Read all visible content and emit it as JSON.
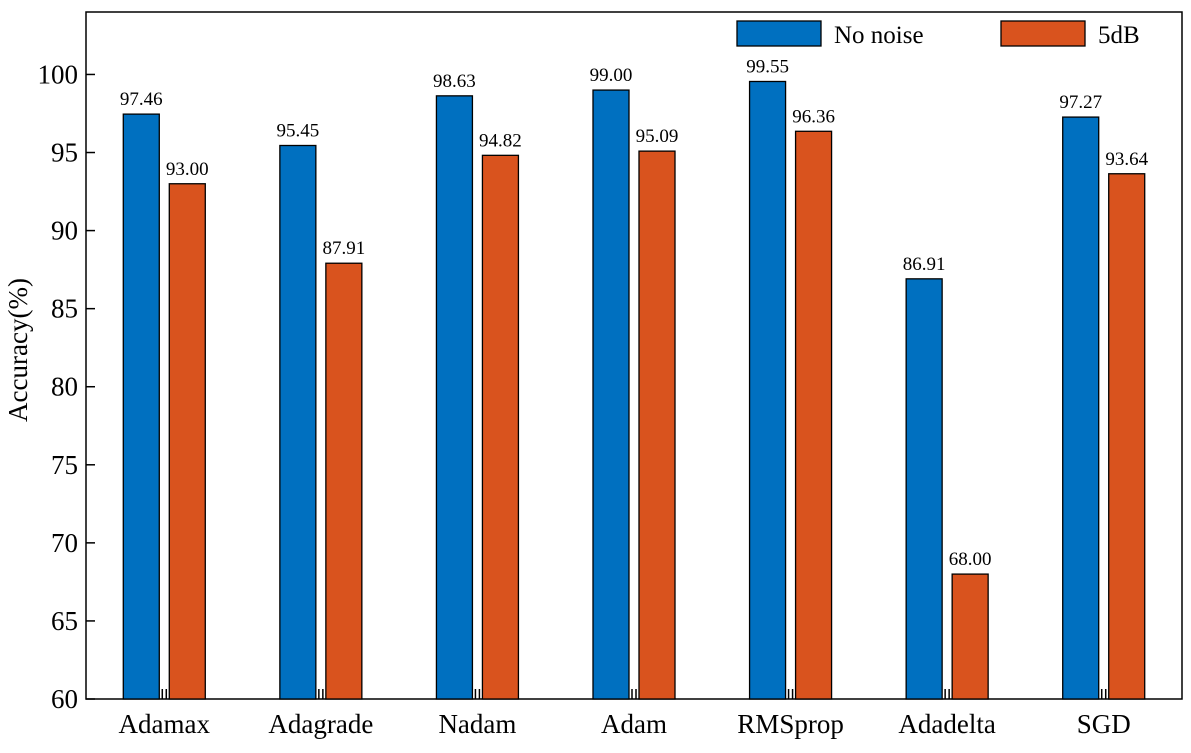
{
  "chart_data": {
    "type": "bar",
    "title": "",
    "xlabel": "",
    "ylabel": "Accuracy(%)",
    "ylim": [
      60,
      104
    ],
    "yticks": [
      60,
      65,
      70,
      75,
      80,
      85,
      90,
      95,
      100
    ],
    "grid": false,
    "legend_position": "top-right",
    "categories": [
      "Adamax",
      "Adagrade",
      "Nadam",
      "Adam",
      "RMSprop",
      "Adadelta",
      "SGD"
    ],
    "series": [
      {
        "name": "No noise",
        "color": "#0070C0",
        "values": [
          97.46,
          95.45,
          98.63,
          99.0,
          99.55,
          86.91,
          97.27
        ],
        "labels": [
          "97.46",
          "95.45",
          "98.63",
          "99.00",
          "99.55",
          "86.91",
          "97.27"
        ]
      },
      {
        "name": "5dB",
        "color": "#D9531E",
        "values": [
          93.0,
          87.91,
          94.82,
          95.09,
          96.36,
          68.0,
          93.64
        ],
        "labels": [
          "93.00",
          "87.91",
          "94.82",
          "95.09",
          "96.36",
          "68.00",
          "93.64"
        ]
      }
    ]
  }
}
